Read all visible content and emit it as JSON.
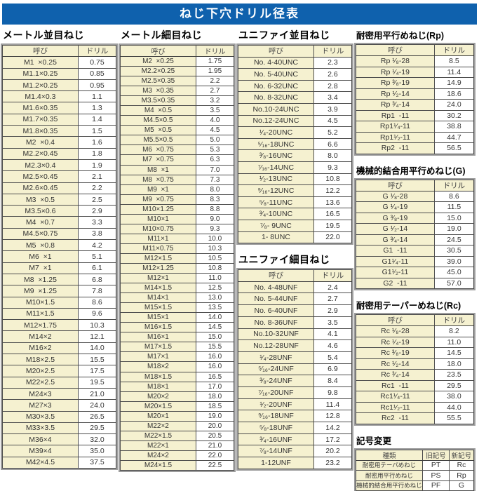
{
  "page": {
    "title": "ねじ下穴ドリル径表"
  },
  "colors": {
    "accent_blue": "#0f61ad",
    "cell_cream": "#f5f1d0",
    "grid_line": "#4d4d4d",
    "outer_frame": "#9d9d9d"
  },
  "tables": {
    "metric_coarse": {
      "title": "メートル並目ねじ",
      "headers": [
        "呼び",
        "ドリル"
      ],
      "rows": [
        [
          "M1  ×0.25",
          "0.75"
        ],
        [
          "M1.1×0.25",
          "0.85"
        ],
        [
          "M1.2×0.25",
          "0.95"
        ],
        [
          "M1.4×0.3",
          "1.1"
        ],
        [
          "M1.6×0.35",
          "1.3"
        ],
        [
          "M1.7×0.35",
          "1.4"
        ],
        [
          "M1.8×0.35",
          "1.5"
        ],
        [
          "M2  ×0.4",
          "1.6"
        ],
        [
          "M2.2×0.45",
          "1.8"
        ],
        [
          "M2.3×0.4",
          "1.9"
        ],
        [
          "M2.5×0.45",
          "2.1"
        ],
        [
          "M2.6×0.45",
          "2.2"
        ],
        [
          "M3  ×0.5",
          "2.5"
        ],
        [
          "M3.5×0.6",
          "2.9"
        ],
        [
          "M4  ×0.7",
          "3.3"
        ],
        [
          "M4.5×0.75",
          "3.8"
        ],
        [
          "M5  ×0.8",
          "4.2"
        ],
        [
          "M6  ×1",
          "5.1"
        ],
        [
          "M7  ×1",
          "6.1"
        ],
        [
          "M8  ×1.25",
          "6.8"
        ],
        [
          "M9  ×1.25",
          "7.8"
        ],
        [
          "M10×1.5",
          "8.6"
        ],
        [
          "M11×1.5",
          "9.6"
        ],
        [
          "M12×1.75",
          "10.3"
        ],
        [
          "M14×2",
          "12.1"
        ],
        [
          "M16×2",
          "14.0"
        ],
        [
          "M18×2.5",
          "15.5"
        ],
        [
          "M20×2.5",
          "17.5"
        ],
        [
          "M22×2.5",
          "19.5"
        ],
        [
          "M24×3",
          "21.0"
        ],
        [
          "M27×3",
          "24.0"
        ],
        [
          "M30×3.5",
          "26.5"
        ],
        [
          "M33×3.5",
          "29.5"
        ],
        [
          "M36×4",
          "32.0"
        ],
        [
          "M39×4",
          "35.0"
        ],
        [
          "M42×4.5",
          "37.5"
        ]
      ]
    },
    "metric_fine": {
      "title": "メートル細目ねじ",
      "headers": [
        "呼び",
        "ドリル"
      ],
      "rows": [
        [
          "M2  ×0.25",
          "1.75"
        ],
        [
          "M2.2×0.25",
          "1.95"
        ],
        [
          "M2.5×0.35",
          "2.2"
        ],
        [
          "M3  ×0.35",
          "2.7"
        ],
        [
          "M3.5×0.35",
          "3.2"
        ],
        [
          "M4  ×0.5",
          "3.5"
        ],
        [
          "M4.5×0.5",
          "4.0"
        ],
        [
          "M5  ×0.5",
          "4.5"
        ],
        [
          "M5.5×0.5",
          "5.0"
        ],
        [
          "M6  ×0.75",
          "5.3"
        ],
        [
          "M7  ×0.75",
          "6.3"
        ],
        [
          "M8  ×1",
          "7.0"
        ],
        [
          "M8  ×0.75",
          "7.3"
        ],
        [
          "M9  ×1",
          "8.0"
        ],
        [
          "M9  ×0.75",
          "8.3"
        ],
        [
          "M10×1.25",
          "8.8"
        ],
        [
          "M10×1",
          "9.0"
        ],
        [
          "M10×0.75",
          "9.3"
        ],
        [
          "M11×1",
          "10.0"
        ],
        [
          "M11×0.75",
          "10.3"
        ],
        [
          "M12×1.5",
          "10.5"
        ],
        [
          "M12×1.25",
          "10.8"
        ],
        [
          "M12×1",
          "11.0"
        ],
        [
          "M14×1.5",
          "12.5"
        ],
        [
          "M14×1",
          "13.0"
        ],
        [
          "M15×1.5",
          "13.5"
        ],
        [
          "M15×1",
          "14.0"
        ],
        [
          "M16×1.5",
          "14.5"
        ],
        [
          "M16×1",
          "15.0"
        ],
        [
          "M17×1.5",
          "15.5"
        ],
        [
          "M17×1",
          "16.0"
        ],
        [
          "M18×2",
          "16.0"
        ],
        [
          "M18×1.5",
          "16.5"
        ],
        [
          "M18×1",
          "17.0"
        ],
        [
          "M20×2",
          "18.0"
        ],
        [
          "M20×1.5",
          "18.5"
        ],
        [
          "M20×1",
          "19.0"
        ],
        [
          "M22×2",
          "20.0"
        ],
        [
          "M22×1.5",
          "20.5"
        ],
        [
          "M22×1",
          "21.0"
        ],
        [
          "M24×2",
          "22.0"
        ],
        [
          "M24×1.5",
          "22.5"
        ]
      ]
    },
    "unified_coarse": {
      "title": "ユニファイ並目ねじ",
      "headers": [
        "呼び",
        "ドリル"
      ],
      "rows": [
        [
          "No. 4-40UNC",
          "2.3"
        ],
        [
          "No. 5-40UNC",
          "2.6"
        ],
        [
          "No. 6-32UNC",
          "2.8"
        ],
        [
          "No. 8-32UNC",
          "3.4"
        ],
        [
          "No.10-24UNC",
          "3.9"
        ],
        [
          "No.12-24UNC",
          "4.5"
        ],
        [
          "¹⁄₄-20UNC",
          "5.2"
        ],
        [
          "⁵⁄₁₆-18UNC",
          "6.6"
        ],
        [
          "³⁄₈-16UNC",
          "8.0"
        ],
        [
          "⁷⁄₁₆-14UNC",
          "9.3"
        ],
        [
          "¹⁄₂-13UNC",
          "10.8"
        ],
        [
          "⁹⁄₁₆-12UNC",
          "12.2"
        ],
        [
          "⁵⁄₈-11UNC",
          "13.6"
        ],
        [
          "³⁄₄-10UNC",
          "16.5"
        ],
        [
          "⁷⁄₈- 9UNC",
          "19.5"
        ],
        [
          "1- 8UNC",
          "22.0"
        ]
      ]
    },
    "unified_fine": {
      "title": "ユニファイ細目ねじ",
      "headers": [
        "呼び",
        "ドリル"
      ],
      "rows": [
        [
          "No. 4-48UNF",
          "2.4"
        ],
        [
          "No. 5-44UNF",
          "2.7"
        ],
        [
          "No. 6-40UNF",
          "2.9"
        ],
        [
          "No. 8-36UNF",
          "3.5"
        ],
        [
          "No.10-32UNF",
          "4.1"
        ],
        [
          "No.12-28UNF",
          "4.6"
        ],
        [
          "¹⁄₄-28UNF",
          "5.4"
        ],
        [
          "⁵⁄₁₆-24UNF",
          "6.9"
        ],
        [
          "³⁄₈-24UNF",
          "8.4"
        ],
        [
          "⁷⁄₁₆-20UNF",
          "9.8"
        ],
        [
          "¹⁄₂-20UNF",
          "11.4"
        ],
        [
          "⁹⁄₁₆-18UNF",
          "12.8"
        ],
        [
          "⁵⁄₈-18UNF",
          "14.2"
        ],
        [
          "³⁄₄-16UNF",
          "17.2"
        ],
        [
          "⁷⁄₈-14UNF",
          "20.2"
        ],
        [
          "1-12UNF",
          "23.2"
        ]
      ]
    },
    "rp": {
      "title": "耐密用平行めねじ(Rp)",
      "headers": [
        "呼び",
        "ドリル"
      ],
      "rows": [
        [
          "Rp ¹⁄₈-28",
          "8.5"
        ],
        [
          "Rp ¹⁄₄-19",
          "11.4"
        ],
        [
          "Rp ³⁄₈-19",
          "14.9"
        ],
        [
          "Rp ¹⁄₂-14",
          "18.6"
        ],
        [
          "Rp ³⁄₄-14",
          "24.0"
        ],
        [
          "Rp1  -11",
          "30.2"
        ],
        [
          "Rp1¹⁄₄-11",
          "38.8"
        ],
        [
          "Rp1¹⁄₂-11",
          "44.7"
        ],
        [
          "Rp2  -11",
          "56.5"
        ]
      ]
    },
    "g": {
      "title": "機械的結合用平行めねじ(G)",
      "headers": [
        "呼び",
        "ドリル"
      ],
      "rows": [
        [
          "G ¹⁄₈-28",
          "8.6"
        ],
        [
          "G ¹⁄₄-19",
          "11.5"
        ],
        [
          "G ³⁄₈-19",
          "15.0"
        ],
        [
          "G ¹⁄₂-14",
          "19.0"
        ],
        [
          "G ³⁄₄-14",
          "24.5"
        ],
        [
          "G1  -11",
          "30.5"
        ],
        [
          "G1¹⁄₄-11",
          "39.0"
        ],
        [
          "G1¹⁄₂-11",
          "45.0"
        ],
        [
          "G2  -11",
          "57.0"
        ]
      ]
    },
    "rc": {
      "title": "耐密用テーパーめねじ(Rc)",
      "headers": [
        "呼び",
        "ドリル"
      ],
      "rows": [
        [
          "Rc ¹⁄₈-28",
          "8.2"
        ],
        [
          "Rc ¹⁄₄-19",
          "11.0"
        ],
        [
          "Rc ³⁄₈-19",
          "14.5"
        ],
        [
          "Rc ¹⁄₂-14",
          "18.0"
        ],
        [
          "Rc ³⁄₄-14",
          "23.5"
        ],
        [
          "Rc1  -11",
          "29.5"
        ],
        [
          "Rc1¹⁄₄-11",
          "38.0"
        ],
        [
          "Rc1¹⁄₂-11",
          "44.0"
        ],
        [
          "Rc2  -11",
          "55.5"
        ]
      ]
    },
    "symbol_change": {
      "title": "記号変更",
      "headers": [
        "種類",
        "旧記号",
        "新記号"
      ],
      "rows": [
        [
          "耐密用テーパめねじ",
          "PT",
          "Rc"
        ],
        [
          "耐密用平行めねじ",
          "PS",
          "Rp"
        ],
        [
          "機械的結合用平行めねじ",
          "PF",
          "G"
        ]
      ]
    }
  }
}
